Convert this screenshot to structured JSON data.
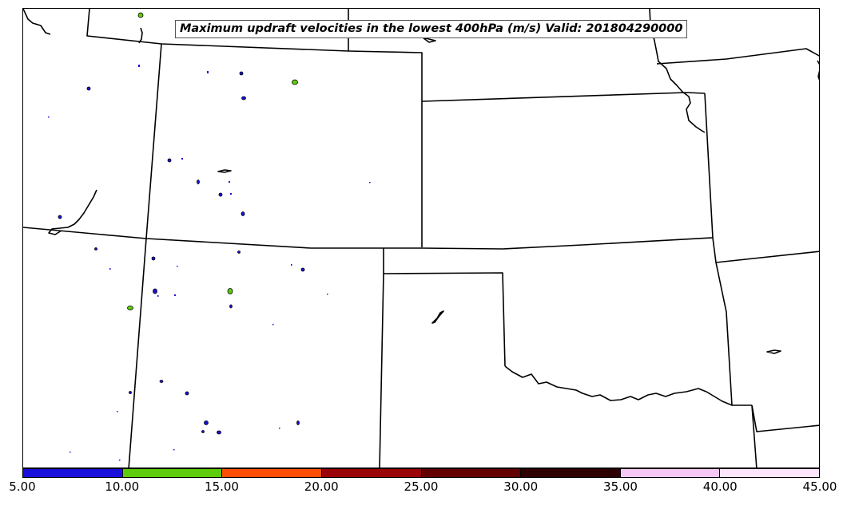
{
  "title": "Maximum updraft velocities in the lowest 400hPa (m/s) Valid: 201804290000",
  "colorbar": {
    "ticks": [
      "5.00",
      "10.00",
      "15.00",
      "20.00",
      "25.00",
      "30.00",
      "35.00",
      "40.00",
      "45.00"
    ],
    "colors": [
      "#1a10dc",
      "#5ecc0c",
      "#fc4e04",
      "#9a0406",
      "#620002",
      "#2e0002",
      "#f7c8f4",
      "#fde6fc"
    ],
    "unit": "m/s",
    "min": 5.0,
    "max": 45.0
  },
  "map": {
    "boundary_color": "#000000",
    "updraft_fill_colors": [
      "#1a10dc",
      "#5ecc0c"
    ]
  }
}
